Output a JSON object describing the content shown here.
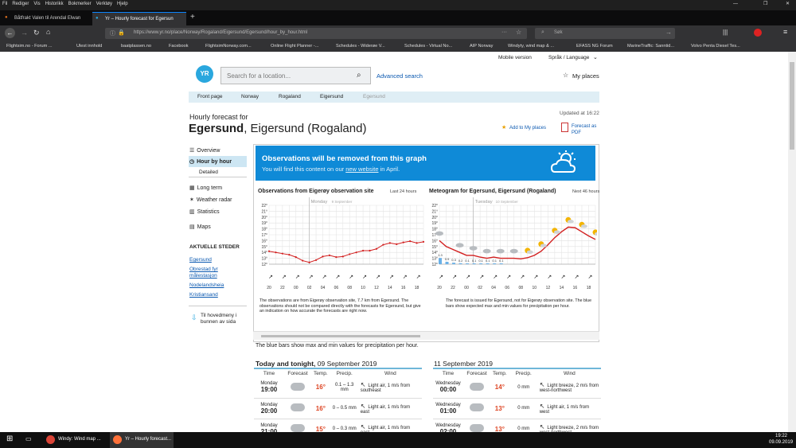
{
  "browser": {
    "menu": [
      "Fil",
      "Rediger",
      "Vis",
      "Historikk",
      "Bokmerker",
      "Verktøy",
      "Hjelp"
    ],
    "tabs": [
      {
        "label": "Båtfrakt Valen til Arendal Elwan"
      },
      {
        "label": "Yr – Hourly forecast for Egersun"
      }
    ],
    "url": "https://www.yr.no/place/Norway/Rogaland/Eigersund/Egersund/hour_by_hour.html",
    "search_placeholder": "Søk",
    "bookmarks": [
      "Flightsim.no - Forum ...",
      "Ulest innhold",
      "baatplassen.no",
      "Facebook",
      "FlightsimNorway.com...",
      "Online Flight Planner -...",
      "Schedules - Widerøe V...",
      "Schedules - Virtual No...",
      "AIP Norway",
      "Windyty, wind map & ...",
      "EFASS NG Forum",
      "MarineTraffic: Sanntid...",
      "Volvo Penta Diesel Tes..."
    ]
  },
  "top_links": {
    "mobile": "Mobile version",
    "lang": "Språk / Language"
  },
  "header": {
    "search_placeholder": "Search for a location...",
    "advanced": "Advanced search",
    "myplaces": "My places"
  },
  "breadcrumb": [
    "Front page",
    "Norway",
    "Rogaland",
    "Eigersund",
    "Egersund"
  ],
  "title": {
    "prefix": "Hourly forecast for",
    "place": "Egersund",
    "region": ", Eigersund (Rogaland)",
    "updated": "Updated at 16:22",
    "add_places": "Add to My places",
    "pdf": "Forecast as PDF"
  },
  "sidebar": {
    "items": [
      "Overview",
      "Hour by hour",
      "Detailed",
      "Long term",
      "Weather radar",
      "Statistics",
      "Maps"
    ],
    "section": "AKTUELLE STEDER",
    "places": [
      "Egersund",
      "Obrestad fyr målestasjon",
      "Nodelandsheia",
      "Kristiansand"
    ],
    "back": "Til hovedmeny i bunnen av sida"
  },
  "banner": {
    "title": "Observations will be removed from this graph",
    "text_before": "You will find this content on our ",
    "link": "new website",
    "text_after": " in April."
  },
  "chart_headers": {
    "obs_title": "Observations from Eigerøy observation site",
    "obs_sub": "Last 24 hours",
    "met_title": "Meteogram for Egersund, Eigersund (Rogaland)",
    "met_sub": "Next 46 hours",
    "obs_day": "Monday",
    "obs_date": "9 September",
    "met_day": "Tuesday",
    "met_date": "10 September"
  },
  "chart_notes": {
    "obs": "The observations are from Eigerøy observation site, 7.7 km from Egersund. The observations should not be compared directly with the forecasts for Egersund, but give an indication on how accurate the forecasts are right now.",
    "met": "The forecast is issued for Egersund, not for Eigerøy observation site. The blue bars show expected max and min values for precipitation per hour."
  },
  "blue_note": "The blue bars show max and min values for precipitation per hour.",
  "chart_data": [
    {
      "type": "line",
      "title": "Observations from Eigerøy observation site",
      "ylim": [
        12,
        22
      ],
      "yticks": [
        "22°",
        "21°",
        "20°",
        "19°",
        "18°",
        "17°",
        "16°",
        "15°",
        "14°",
        "13°",
        "12°"
      ],
      "xticks": [
        "20",
        "22",
        "00",
        "02",
        "04",
        "06",
        "08",
        "10",
        "12",
        "14",
        "16",
        "18"
      ],
      "series": [
        {
          "name": "Temperature",
          "x": [
            0,
            1,
            2,
            3,
            4,
            5,
            6,
            7,
            8,
            9,
            10,
            11,
            12,
            13,
            14,
            15,
            16,
            17,
            18,
            19,
            20,
            21,
            22,
            23
          ],
          "values": [
            14.2,
            14.0,
            13.8,
            13.6,
            13.2,
            12.6,
            12.3,
            12.7,
            13.3,
            13.5,
            13.2,
            13.3,
            13.7,
            14.0,
            14.3,
            14.3,
            14.6,
            15.3,
            15.6,
            15.4,
            15.7,
            15.9,
            15.6,
            15.8
          ]
        }
      ]
    },
    {
      "type": "line",
      "title": "Meteogram for Egersund, Eigersund (Rogaland)",
      "ylim": [
        12,
        22
      ],
      "yticks": [
        "22°",
        "21°",
        "20°",
        "19°",
        "18°",
        "17°",
        "16°",
        "15°",
        "14°",
        "13°",
        "12°"
      ],
      "xticks": [
        "20",
        "22",
        "00",
        "02",
        "04",
        "06",
        "08",
        "10",
        "12",
        "14",
        "16",
        "18"
      ],
      "series": [
        {
          "name": "Temperature",
          "x": [
            0,
            1,
            2,
            3,
            4,
            5,
            6,
            7,
            8,
            9,
            10,
            11,
            12,
            13,
            14,
            15,
            16,
            17,
            18,
            19,
            20,
            21,
            22,
            23
          ],
          "values": [
            16.0,
            15.0,
            14.5,
            14.0,
            13.5,
            13.5,
            13.2,
            13.0,
            13.2,
            13.0,
            13.0,
            13.0,
            12.9,
            13.1,
            13.5,
            14.2,
            15.3,
            16.5,
            17.5,
            18.3,
            18.2,
            17.5,
            16.8,
            16.2
          ]
        }
      ],
      "precip_labels": [
        "1.3",
        "0.5",
        "0.3",
        "0.2",
        "0.1",
        "0.1",
        "0.1",
        "0.1",
        "0.1",
        "0.1"
      ]
    }
  ],
  "today": {
    "heading_bold": "Today and tonight,",
    "heading_date": " 09 September 2019",
    "cols": [
      "Time",
      "Forecast",
      "Temp.",
      "Precip.",
      "Wind"
    ],
    "rows": [
      {
        "day": "Monday",
        "time": "19:00",
        "temp": "16°",
        "precip": "0.1 – 1.3 mm",
        "wind": "Light air, 1 m/s from southeast"
      },
      {
        "day": "Monday",
        "time": "20:00",
        "temp": "16°",
        "precip": "0 – 0.5 mm",
        "wind": "Light air, 1 m/s from east"
      },
      {
        "day": "Monday",
        "time": "21:00",
        "temp": "15°",
        "precip": "0 – 0.3 mm",
        "wind": "Light air, 1 m/s from east"
      }
    ]
  },
  "later": {
    "heading": "11 September 2019",
    "cols": [
      "Time",
      "Forecast",
      "Temp.",
      "Precip.",
      "Wind"
    ],
    "rows": [
      {
        "day": "Wednesday",
        "time": "00:00",
        "temp": "14°",
        "precip": "0 mm",
        "wind": "Light breeze, 2 m/s from west-northwest"
      },
      {
        "day": "Wednesday",
        "time": "01:00",
        "temp": "13°",
        "precip": "0 mm",
        "wind": "Light air, 1 m/s from west"
      },
      {
        "day": "Wednesday",
        "time": "02:00",
        "temp": "13°",
        "precip": "0 mm",
        "wind": "Light breeze, 2 m/s from west-northwest"
      }
    ]
  },
  "taskbar": {
    "app1": "Windy: Wind map ...",
    "app2": "Yr – Hourly forecast...",
    "time": "19:22",
    "date": "09.09.2019"
  }
}
